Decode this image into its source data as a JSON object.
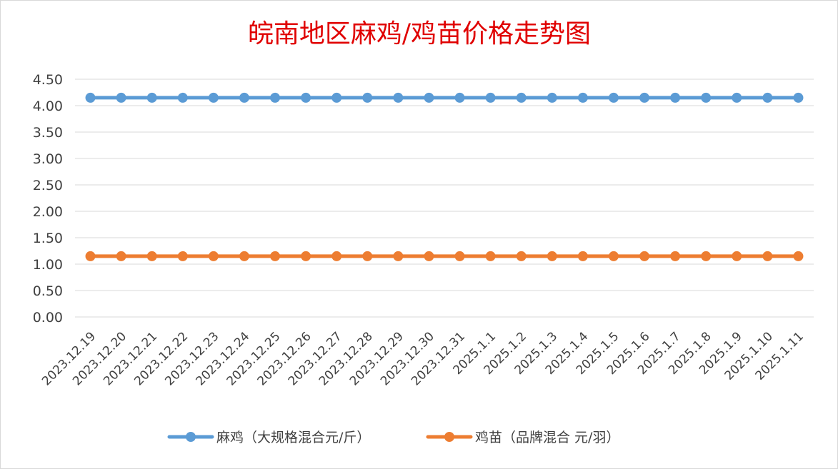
{
  "chart_data": {
    "type": "line",
    "title": "皖南地区麻鸡/鸡苗价格走势图",
    "xlabel": "",
    "ylabel": "",
    "ylim": [
      0,
      4.5
    ],
    "yticks": [
      "0.00",
      "0.50",
      "1.00",
      "1.50",
      "2.00",
      "2.50",
      "3.00",
      "3.50",
      "4.00",
      "4.50"
    ],
    "ytick_values": [
      0,
      0.5,
      1,
      1.5,
      2,
      2.5,
      3,
      3.5,
      4,
      4.5
    ],
    "grid": true,
    "legend_position": "bottom",
    "categories": [
      "2023.12.19",
      "2023.12.20",
      "2023.12.21",
      "2023.12.22",
      "2023.12.23",
      "2023.12.24",
      "2023.12.25",
      "2023.12.26",
      "2023.12.27",
      "2023.12.28",
      "2023.12.29",
      "2023.12.30",
      "2023.12.31",
      "2025.1.1",
      "2025.1.2",
      "2025.1.3",
      "2025.1.4",
      "2025.1.5",
      "2025.1.6",
      "2025.1.7",
      "2025.1.8",
      "2025.1.9",
      "2025.1.10",
      "2025.1.11"
    ],
    "series": [
      {
        "name": "麻鸡（大规格混合元/斤）",
        "color": "#5b9bd5",
        "values": [
          4.15,
          4.15,
          4.15,
          4.15,
          4.15,
          4.15,
          4.15,
          4.15,
          4.15,
          4.15,
          4.15,
          4.15,
          4.15,
          4.15,
          4.15,
          4.15,
          4.15,
          4.15,
          4.15,
          4.15,
          4.15,
          4.15,
          4.15,
          4.15
        ]
      },
      {
        "name": "鸡苗（品牌混合 元/羽）",
        "color": "#ed7d31",
        "values": [
          1.15,
          1.15,
          1.15,
          1.15,
          1.15,
          1.15,
          1.15,
          1.15,
          1.15,
          1.15,
          1.15,
          1.15,
          1.15,
          1.15,
          1.15,
          1.15,
          1.15,
          1.15,
          1.15,
          1.15,
          1.15,
          1.15,
          1.15,
          1.15
        ]
      }
    ]
  }
}
